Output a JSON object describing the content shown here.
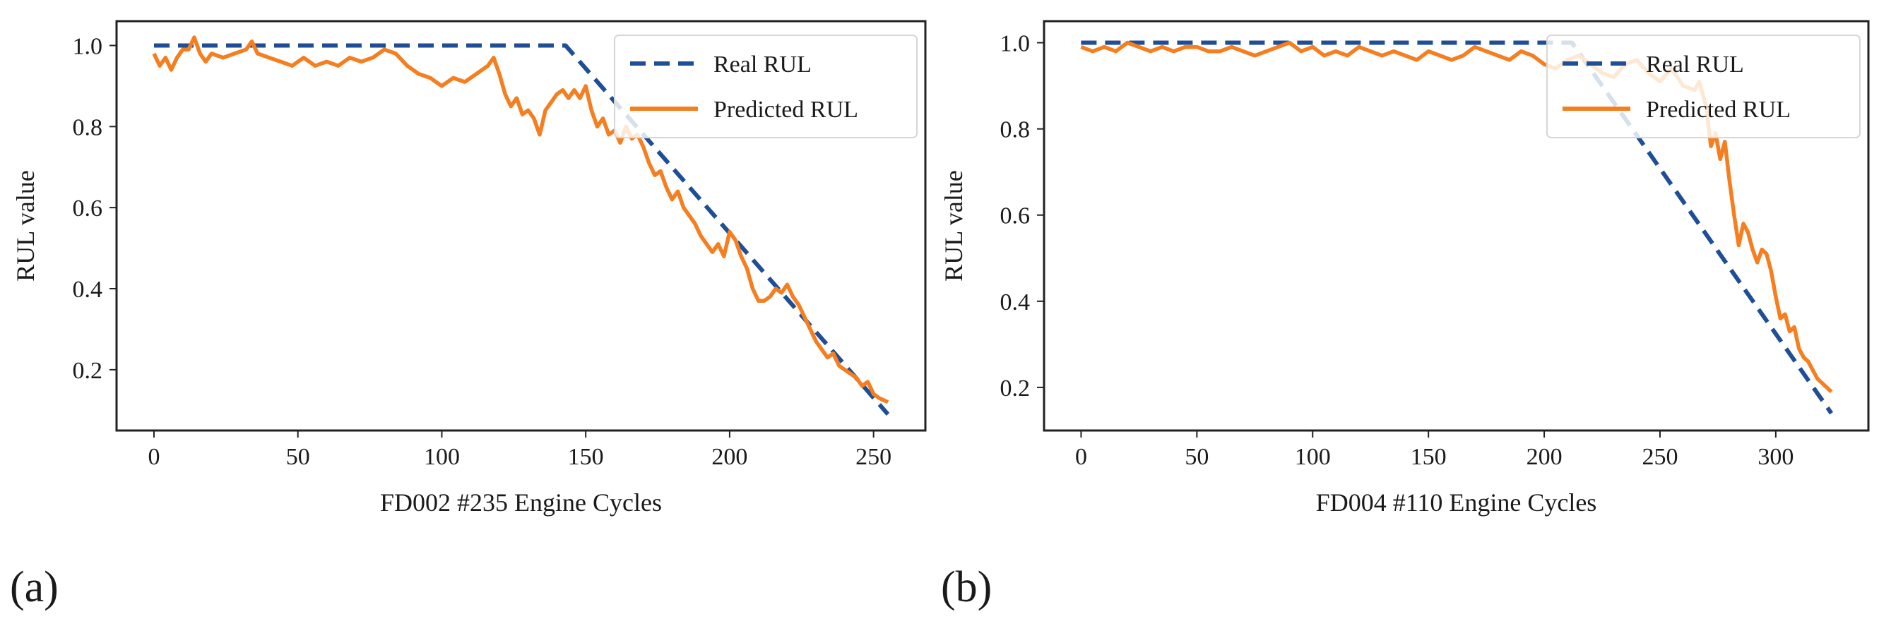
{
  "figure": {
    "panels": [
      {
        "tag": "(a)"
      },
      {
        "tag": "(b)"
      }
    ]
  },
  "chart_data": [
    {
      "type": "line",
      "title": "",
      "xlabel": "FD002 #235 Engine Cycles",
      "ylabel": "RUL value",
      "xlim": [
        -13,
        268
      ],
      "ylim": [
        0.05,
        1.06
      ],
      "xticks": [
        0,
        50,
        100,
        150,
        200,
        250
      ],
      "yticks": [
        0.2,
        0.4,
        0.6,
        0.8,
        1.0
      ],
      "ytick_labels": [
        "0.2",
        "0.4",
        "0.6",
        "0.8",
        "1.0"
      ],
      "legend_position": "top-right",
      "series": [
        {
          "name": "Real RUL",
          "color": "#1f4e96",
          "style": "dashed",
          "x": [
            0,
            143,
            255
          ],
          "y": [
            1.0,
            1.0,
            0.09
          ]
        },
        {
          "name": "Predicted RUL",
          "color": "#f57f20",
          "style": "solid",
          "x": [
            0,
            2,
            4,
            6,
            8,
            10,
            12,
            14,
            16,
            18,
            20,
            24,
            28,
            32,
            34,
            36,
            40,
            44,
            48,
            52,
            56,
            60,
            64,
            68,
            72,
            76,
            80,
            84,
            88,
            92,
            96,
            100,
            104,
            108,
            112,
            116,
            118,
            120,
            122,
            124,
            126,
            128,
            130,
            132,
            134,
            136,
            138,
            140,
            142,
            144,
            146,
            148,
            150,
            152,
            154,
            156,
            158,
            160,
            162,
            164,
            166,
            168,
            170,
            172,
            174,
            176,
            178,
            180,
            182,
            184,
            186,
            188,
            190,
            192,
            194,
            196,
            198,
            200,
            202,
            204,
            206,
            208,
            210,
            212,
            214,
            216,
            218,
            220,
            222,
            224,
            226,
            228,
            230,
            232,
            234,
            236,
            238,
            240,
            242,
            244,
            246,
            248,
            250,
            252,
            255
          ],
          "y": [
            0.98,
            0.95,
            0.97,
            0.94,
            0.97,
            0.99,
            0.99,
            1.02,
            0.98,
            0.96,
            0.98,
            0.97,
            0.98,
            0.99,
            1.01,
            0.98,
            0.97,
            0.96,
            0.95,
            0.97,
            0.95,
            0.96,
            0.95,
            0.97,
            0.96,
            0.97,
            0.99,
            0.98,
            0.95,
            0.93,
            0.92,
            0.9,
            0.92,
            0.91,
            0.93,
            0.95,
            0.97,
            0.93,
            0.88,
            0.85,
            0.87,
            0.83,
            0.84,
            0.82,
            0.78,
            0.84,
            0.86,
            0.88,
            0.89,
            0.87,
            0.89,
            0.87,
            0.9,
            0.84,
            0.8,
            0.82,
            0.78,
            0.79,
            0.76,
            0.8,
            0.77,
            0.78,
            0.75,
            0.71,
            0.68,
            0.69,
            0.65,
            0.62,
            0.64,
            0.6,
            0.58,
            0.56,
            0.53,
            0.51,
            0.49,
            0.51,
            0.48,
            0.54,
            0.52,
            0.48,
            0.45,
            0.4,
            0.37,
            0.37,
            0.38,
            0.4,
            0.39,
            0.41,
            0.38,
            0.36,
            0.33,
            0.3,
            0.27,
            0.25,
            0.23,
            0.24,
            0.21,
            0.2,
            0.19,
            0.18,
            0.16,
            0.17,
            0.14,
            0.13,
            0.12
          ]
        }
      ]
    },
    {
      "type": "line",
      "title": "",
      "xlabel": "FD004 #110 Engine Cycles",
      "ylabel": "RUL value",
      "xlim": [
        -16,
        340
      ],
      "ylim": [
        0.1,
        1.05
      ],
      "xticks": [
        0,
        50,
        100,
        150,
        200,
        250,
        300
      ],
      "yticks": [
        0.2,
        0.4,
        0.6,
        0.8,
        1.0
      ],
      "ytick_labels": [
        "0.2",
        "0.4",
        "0.6",
        "0.8",
        "1.0"
      ],
      "legend_position": "top-right",
      "series": [
        {
          "name": "Real RUL",
          "color": "#1f4e96",
          "style": "dashed",
          "x": [
            0,
            212,
            324
          ],
          "y": [
            1.0,
            1.0,
            0.14
          ]
        },
        {
          "name": "Predicted RUL",
          "color": "#f57f20",
          "style": "solid",
          "x": [
            0,
            5,
            10,
            15,
            20,
            25,
            30,
            35,
            40,
            45,
            50,
            55,
            60,
            65,
            70,
            75,
            80,
            85,
            90,
            95,
            100,
            105,
            110,
            115,
            120,
            125,
            130,
            135,
            140,
            145,
            150,
            155,
            160,
            165,
            170,
            175,
            180,
            185,
            190,
            195,
            200,
            205,
            210,
            215,
            220,
            225,
            230,
            235,
            240,
            245,
            250,
            255,
            260,
            265,
            267,
            270,
            272,
            274,
            276,
            278,
            280,
            282,
            284,
            286,
            288,
            290,
            292,
            294,
            296,
            298,
            300,
            302,
            304,
            306,
            308,
            310,
            312,
            314,
            316,
            318,
            320,
            324
          ],
          "y": [
            0.99,
            0.98,
            0.99,
            0.98,
            1.0,
            0.99,
            0.98,
            0.99,
            0.98,
            0.99,
            0.99,
            0.98,
            0.98,
            0.99,
            0.98,
            0.97,
            0.98,
            0.99,
            1.0,
            0.98,
            0.99,
            0.97,
            0.98,
            0.97,
            0.99,
            0.98,
            0.97,
            0.98,
            0.97,
            0.96,
            0.98,
            0.97,
            0.96,
            0.97,
            0.99,
            0.98,
            0.97,
            0.96,
            0.98,
            0.97,
            0.95,
            0.94,
            0.96,
            0.97,
            0.95,
            0.93,
            0.92,
            0.95,
            0.96,
            0.93,
            0.91,
            0.94,
            0.9,
            0.89,
            0.91,
            0.85,
            0.76,
            0.79,
            0.73,
            0.77,
            0.68,
            0.6,
            0.53,
            0.58,
            0.56,
            0.52,
            0.49,
            0.52,
            0.51,
            0.47,
            0.41,
            0.36,
            0.37,
            0.33,
            0.34,
            0.29,
            0.27,
            0.26,
            0.24,
            0.22,
            0.21,
            0.19
          ]
        }
      ]
    }
  ]
}
